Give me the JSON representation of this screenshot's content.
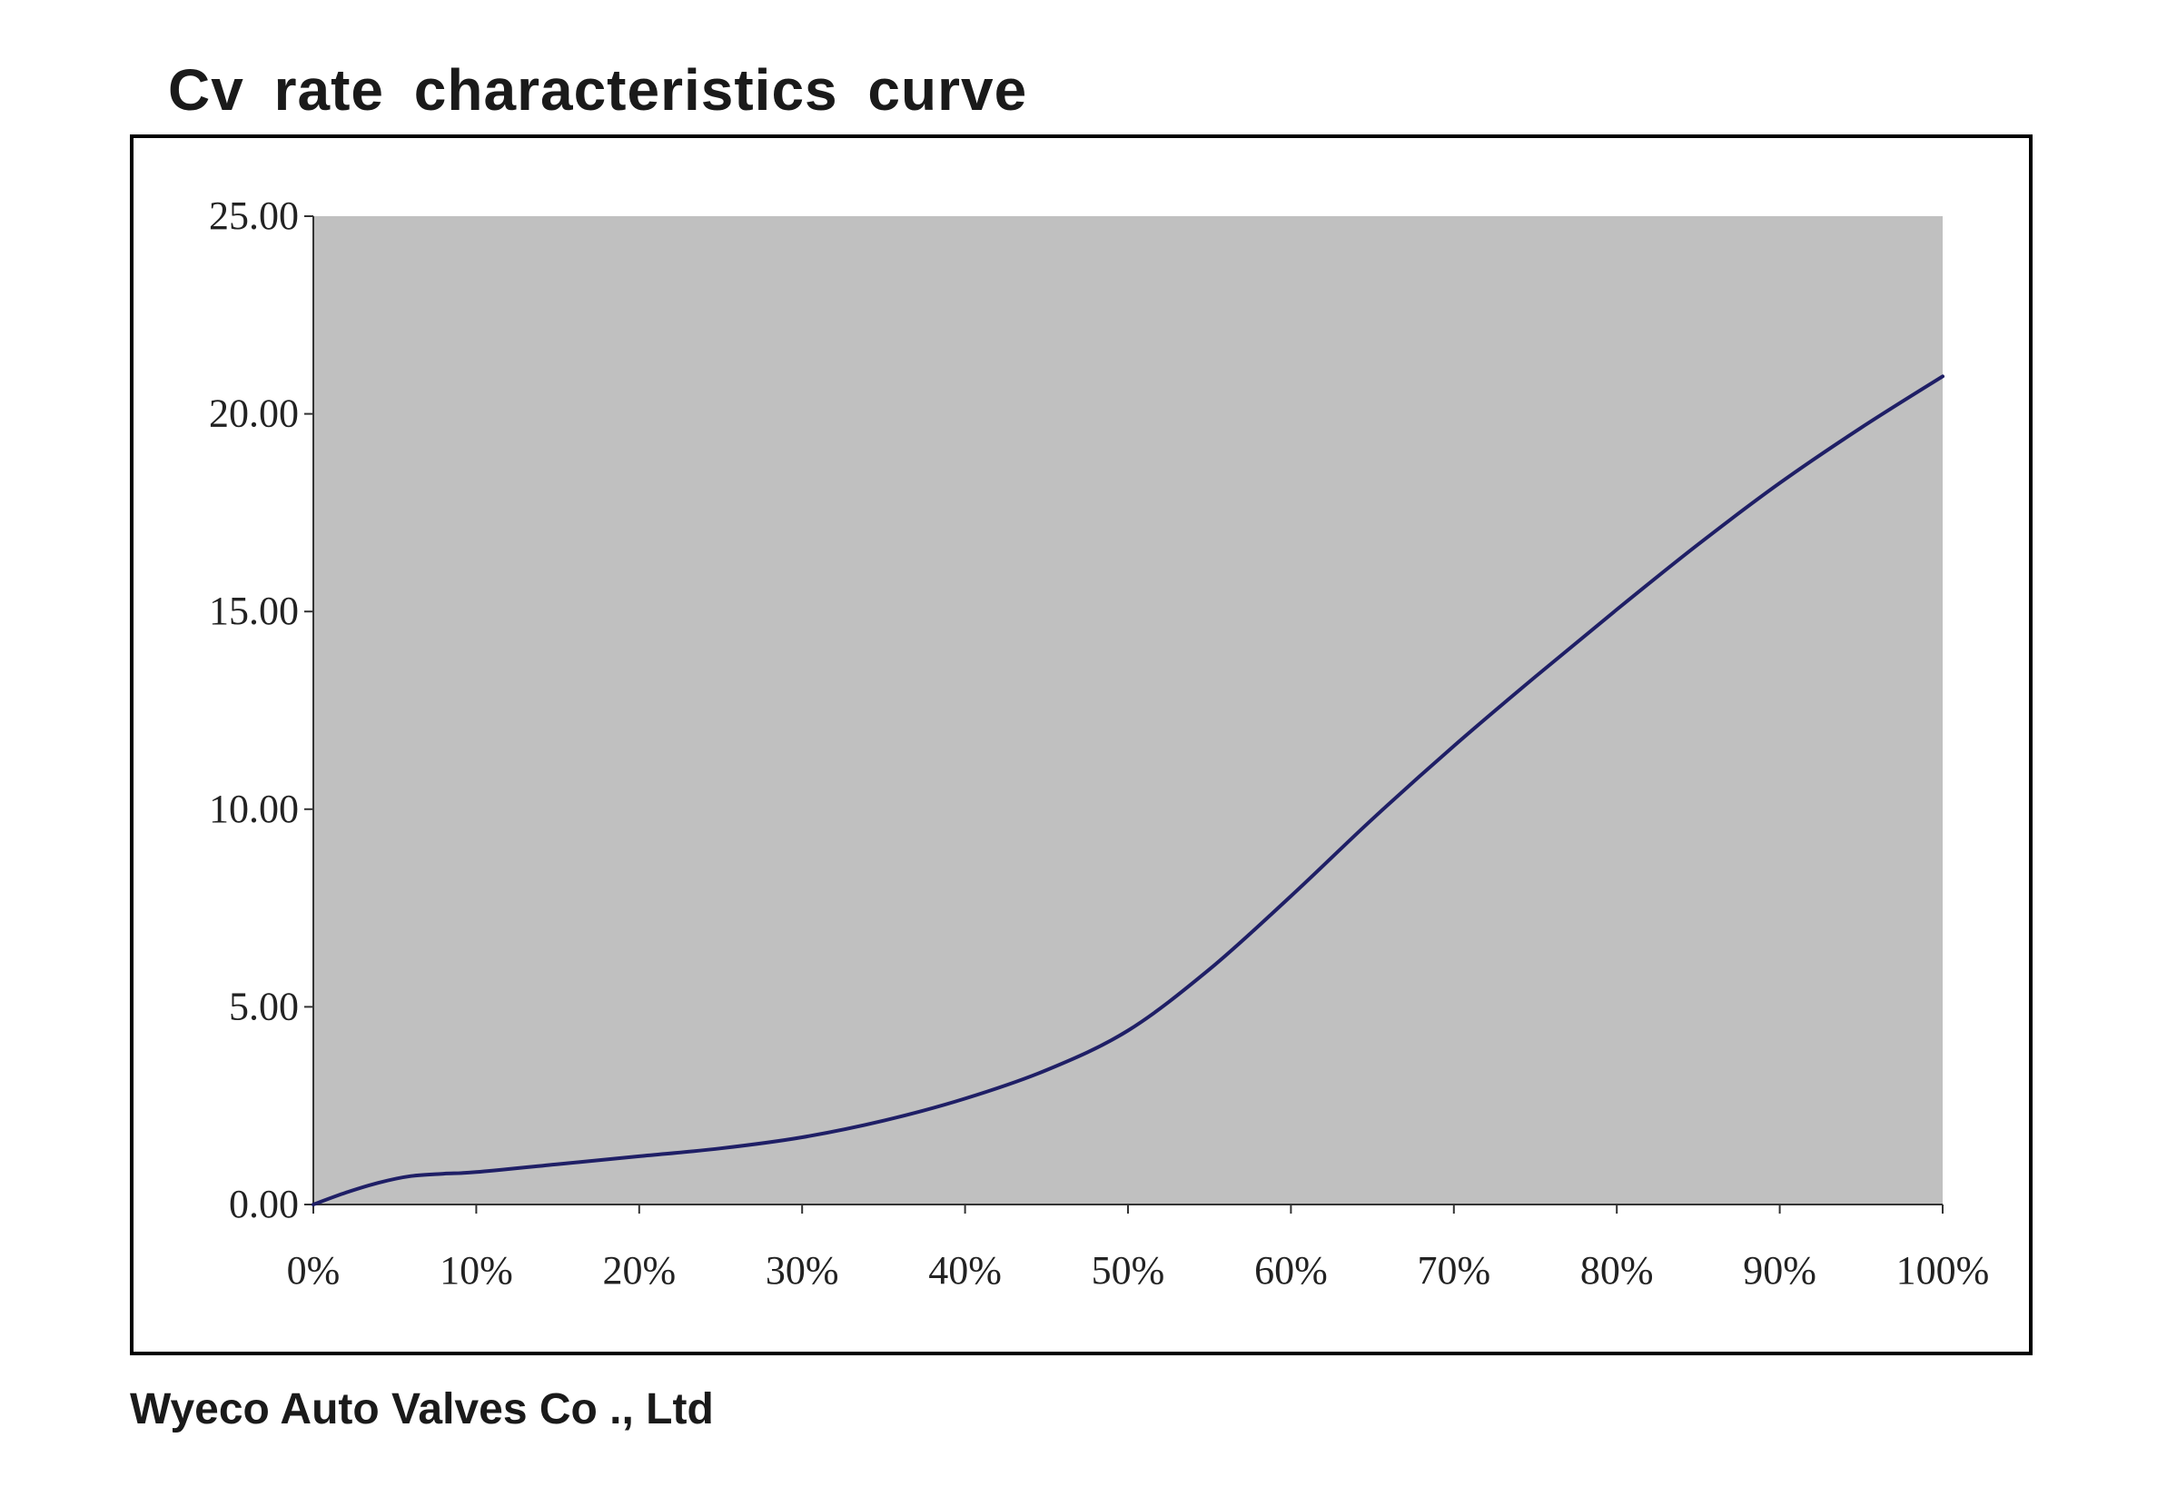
{
  "chart_data": {
    "type": "line",
    "title": "Cv  rate  characteristics  curve",
    "xlabel": "",
    "ylabel": "",
    "x_tick_labels": [
      "0%",
      "10%",
      "20%",
      "30%",
      "40%",
      "50%",
      "60%",
      "70%",
      "80%",
      "90%",
      "100%"
    ],
    "y_tick_labels": [
      "0.00",
      "5.00",
      "10.00",
      "15.00",
      "20.00",
      "25.00"
    ],
    "xlim": [
      0,
      100
    ],
    "ylim": [
      0,
      25
    ],
    "grid": false,
    "legend": "none",
    "plot_background": "#c0c0c0",
    "series": [
      {
        "color": "#1f1f66",
        "x": [
          0,
          2,
          4,
          6,
          8,
          10,
          15,
          20,
          25,
          30,
          35,
          40,
          45,
          50,
          55,
          60,
          65,
          70,
          75,
          80,
          85,
          90,
          95,
          100
        ],
        "y": [
          0,
          0.3,
          0.55,
          0.72,
          0.78,
          0.82,
          1.02,
          1.22,
          1.42,
          1.7,
          2.12,
          2.68,
          3.4,
          4.4,
          5.95,
          7.8,
          9.75,
          11.6,
          13.35,
          15.05,
          16.7,
          18.25,
          19.65,
          20.95
        ]
      }
    ]
  },
  "footer": {
    "company": "Wyeco Auto Valves Co ., Ltd"
  }
}
